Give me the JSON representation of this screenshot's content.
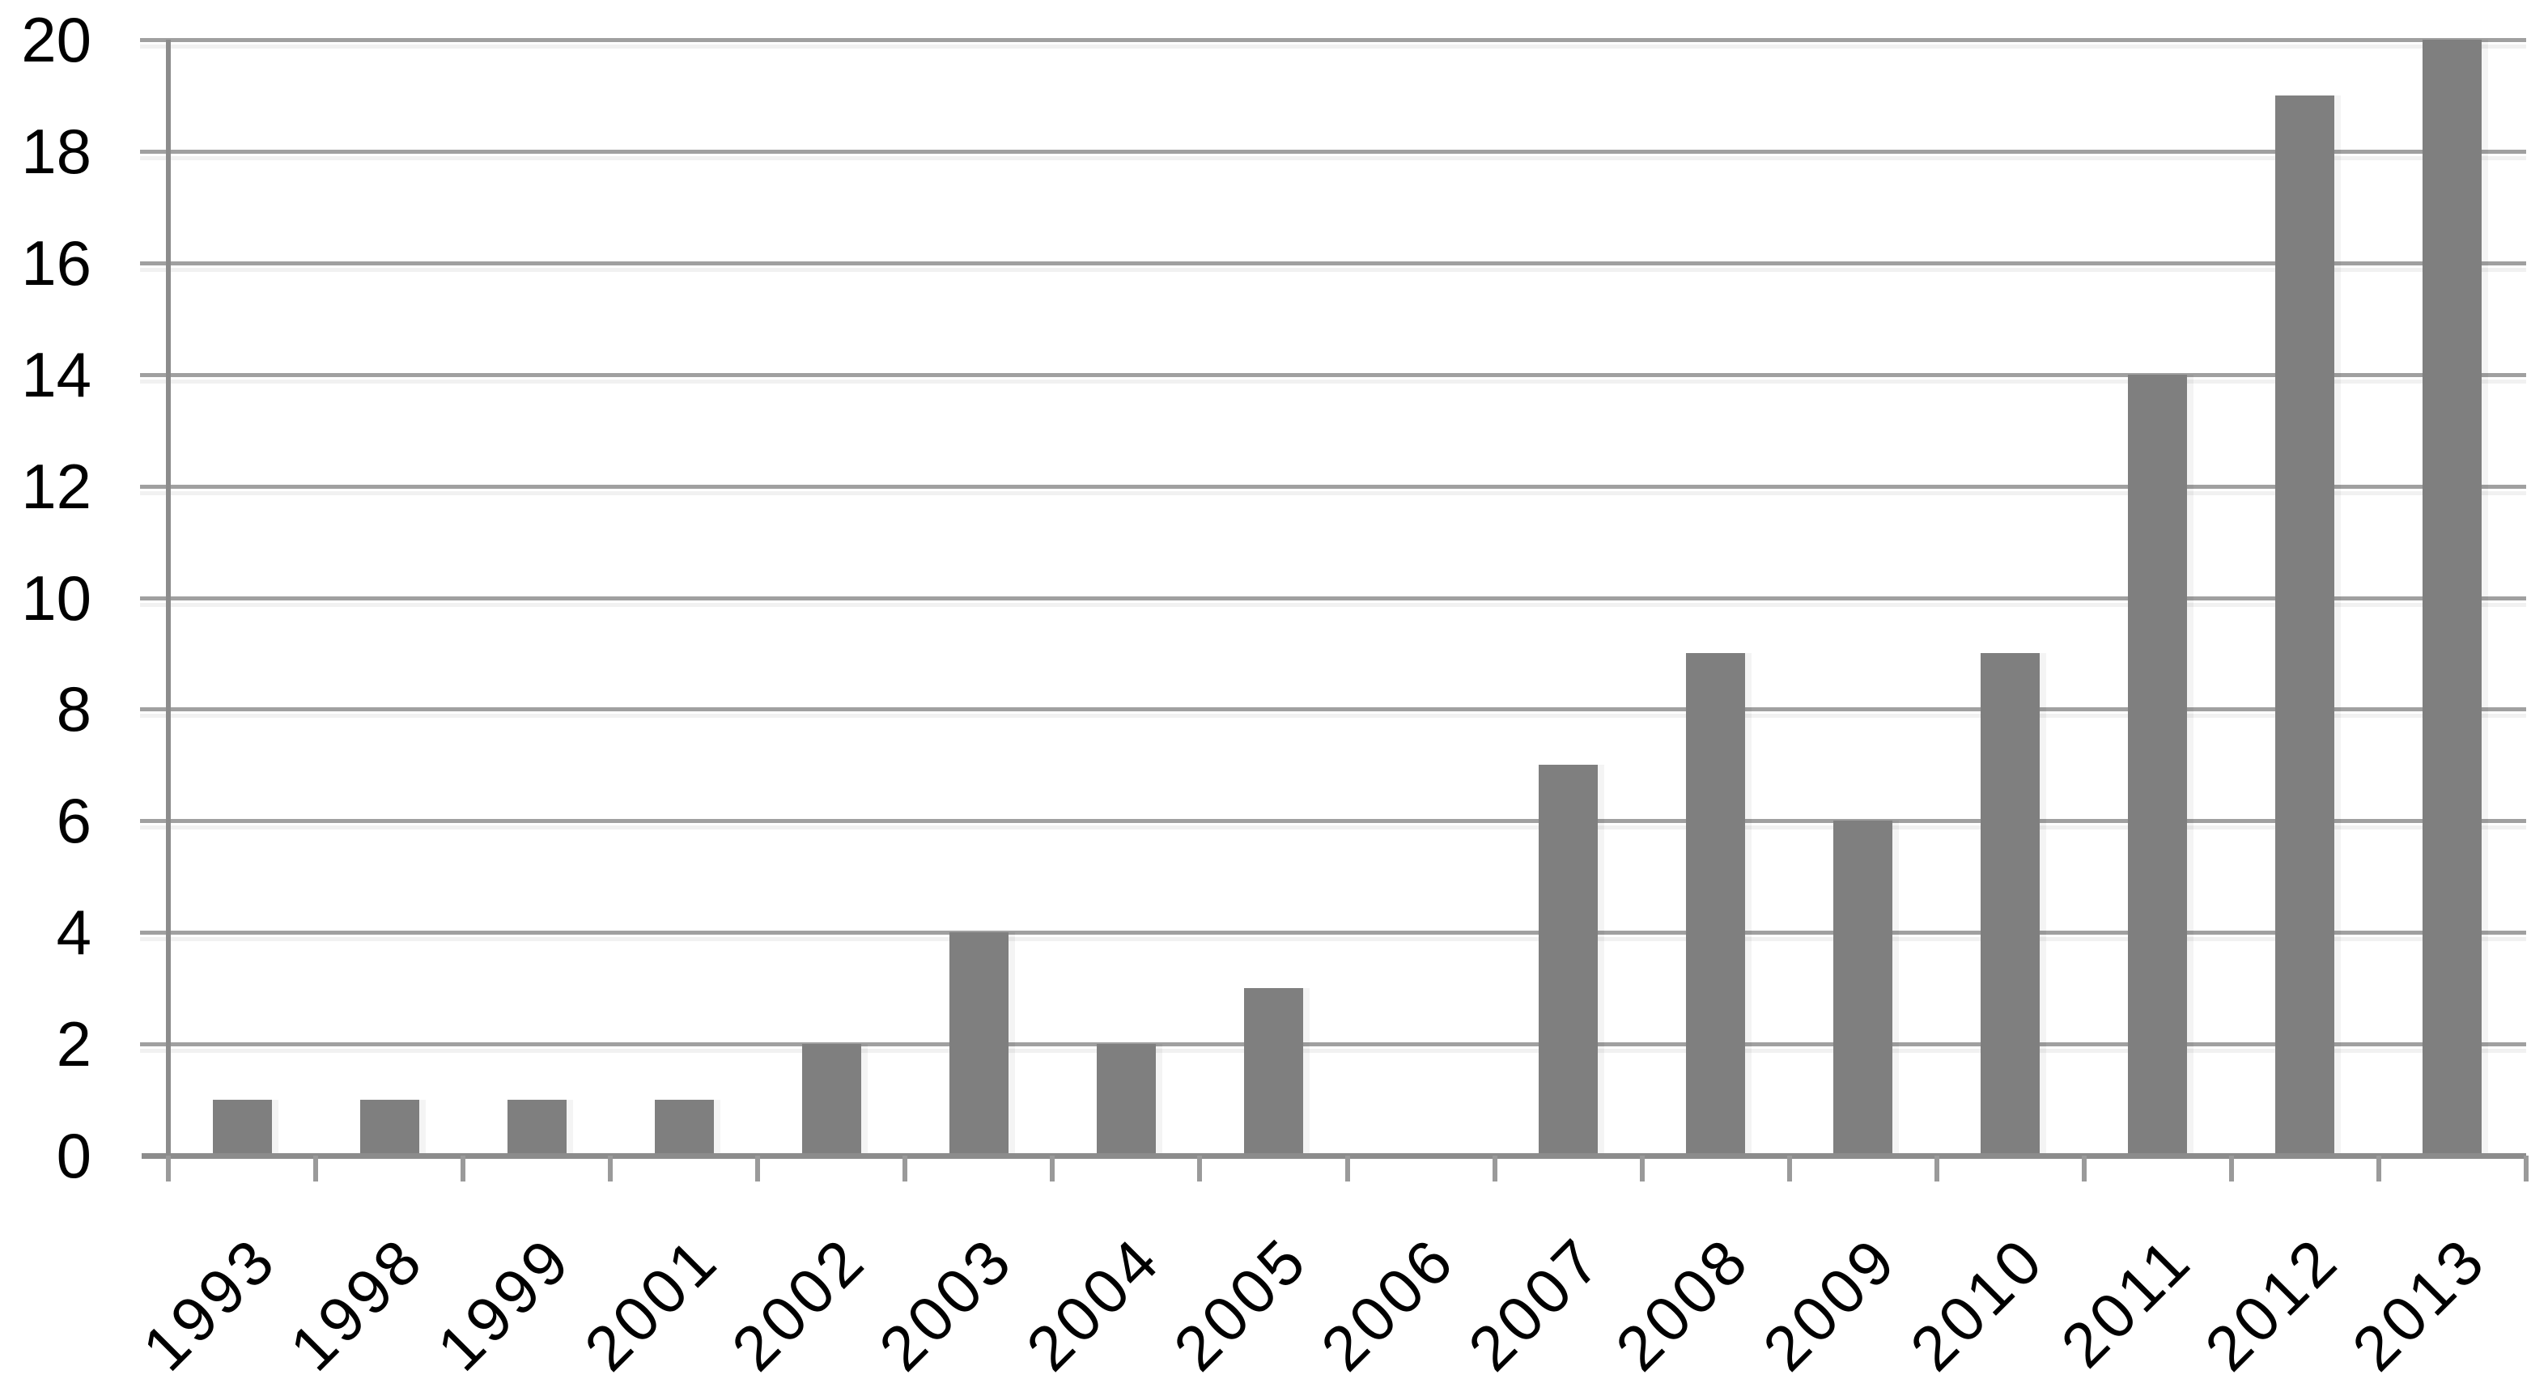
{
  "chart_data": {
    "type": "bar",
    "title": "",
    "xlabel": "",
    "ylabel": "",
    "categories": [
      "1993",
      "1998",
      "1999",
      "2001",
      "2002",
      "2003",
      "2004",
      "2005",
      "2006",
      "2007",
      "2008",
      "2009",
      "2010",
      "2011",
      "2012",
      "2013"
    ],
    "values": [
      1,
      1,
      1,
      1,
      2,
      4,
      2,
      3,
      0,
      7,
      9,
      6,
      9,
      14,
      19,
      20
    ],
    "ylim": [
      0,
      20
    ],
    "ytick_step": 2,
    "yticks": [
      0,
      2,
      4,
      6,
      8,
      10,
      12,
      14,
      16,
      18,
      20
    ],
    "grid": true,
    "legend": false,
    "bar_color": "#7f7f7f",
    "gridline_color": "#a0a0a0",
    "axis_color": "#8c8c8c",
    "tick_color": "#9a9a9a",
    "label_color": "#000000",
    "background_color": "#ffffff"
  }
}
